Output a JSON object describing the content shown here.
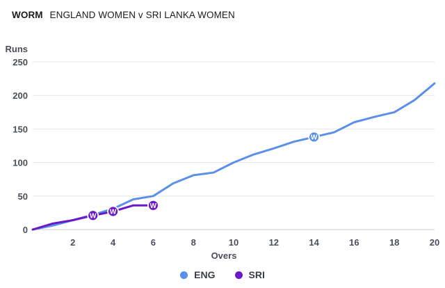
{
  "header": {
    "kind": "WORM",
    "match": "ENGLAND WOMEN v SRI LANKA WOMEN"
  },
  "chart_data": {
    "type": "line",
    "title": "WORM",
    "subtitle": "ENGLAND WOMEN v SRI LANKA WOMEN",
    "xlabel": "Overs",
    "ylabel": "Runs",
    "xlim": [
      0,
      20
    ],
    "ylim": [
      0,
      250
    ],
    "xticks": [
      2,
      4,
      6,
      8,
      10,
      12,
      14,
      16,
      18,
      20
    ],
    "yticks": [
      0,
      50,
      100,
      150,
      200,
      250
    ],
    "grid": "horizontal",
    "legend_position": "bottom-center",
    "series": [
      {
        "name": "ENG",
        "color": "#5b8fe8",
        "x": [
          0,
          1,
          2,
          3,
          4,
          5,
          6,
          7,
          8,
          9,
          10,
          11,
          12,
          13,
          14,
          15,
          16,
          17,
          18,
          19,
          20
        ],
        "y": [
          0,
          6,
          14,
          22,
          31,
          45,
          50,
          69,
          81,
          85,
          100,
          112,
          121,
          131,
          138,
          145,
          160,
          168,
          175,
          193,
          218
        ],
        "wickets": [
          {
            "x": 14,
            "y": 138,
            "label": "W"
          }
        ]
      },
      {
        "name": "SRI",
        "color": "#6a18c9",
        "x": [
          0,
          1,
          2,
          3,
          4,
          5,
          6
        ],
        "y": [
          0,
          9,
          14,
          21,
          27,
          36,
          36
        ],
        "wickets": [
          {
            "x": 3,
            "y": 21,
            "label": "W"
          },
          {
            "x": 4,
            "y": 27,
            "label": "W"
          },
          {
            "x": 6,
            "y": 36,
            "label": "W"
          }
        ]
      }
    ]
  }
}
